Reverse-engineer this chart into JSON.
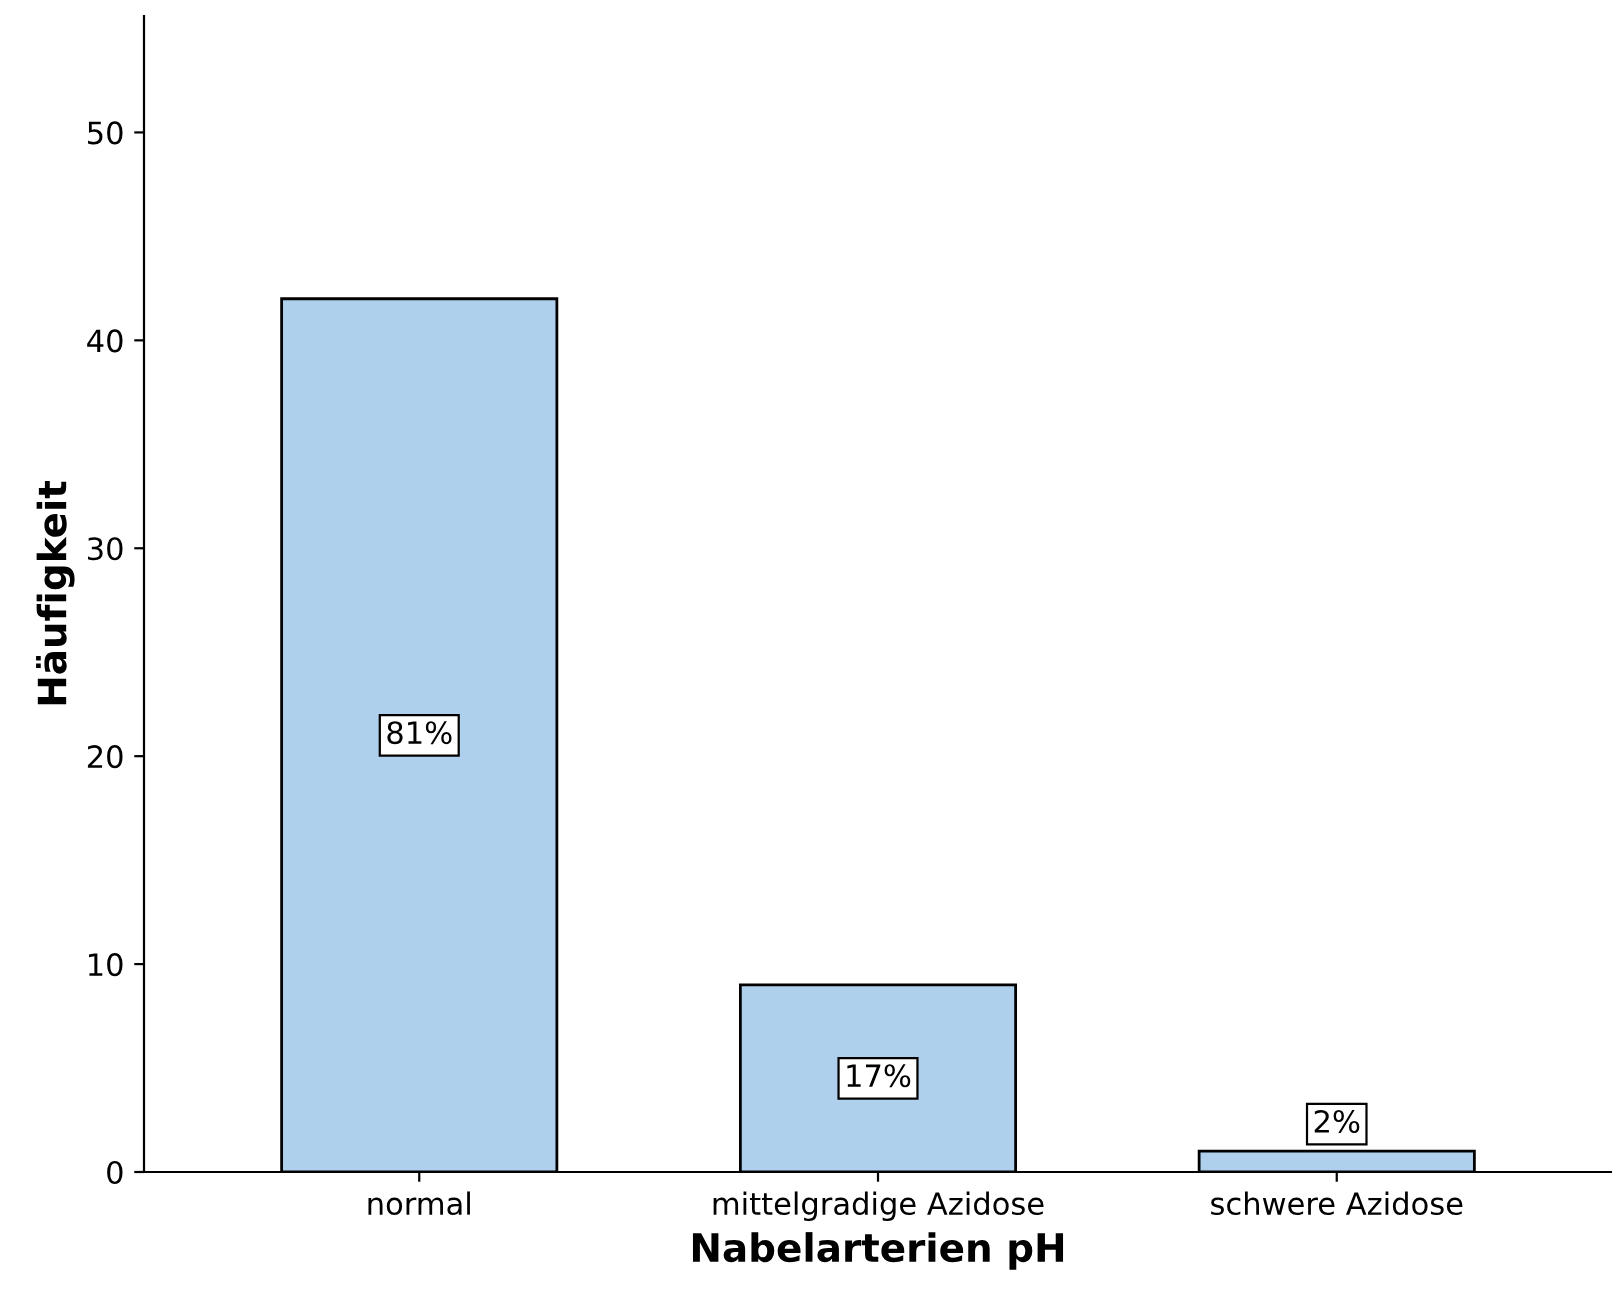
{
  "chart_data": {
    "type": "bar",
    "xlabel": "Nabelarterien pH",
    "ylabel": "Häufigkeit",
    "categories": [
      "normal",
      "mittelgradige Azidose",
      "schwere Azidose"
    ],
    "values": [
      42,
      9,
      1
    ],
    "color": "#aed0ec",
    "annotations": [
      {
        "text": "81%",
        "x": "normal",
        "y": 21
      },
      {
        "text": "17%",
        "x": "mittelgradige Azidose",
        "y": 4.5
      },
      {
        "text": "2%",
        "x": "schwere Azidose",
        "y": 2.3
      }
    ],
    "ylim": [
      0,
      55.6
    ],
    "yticks": [
      0,
      10,
      20,
      30,
      40,
      50
    ],
    "grid": false,
    "legend": false
  }
}
